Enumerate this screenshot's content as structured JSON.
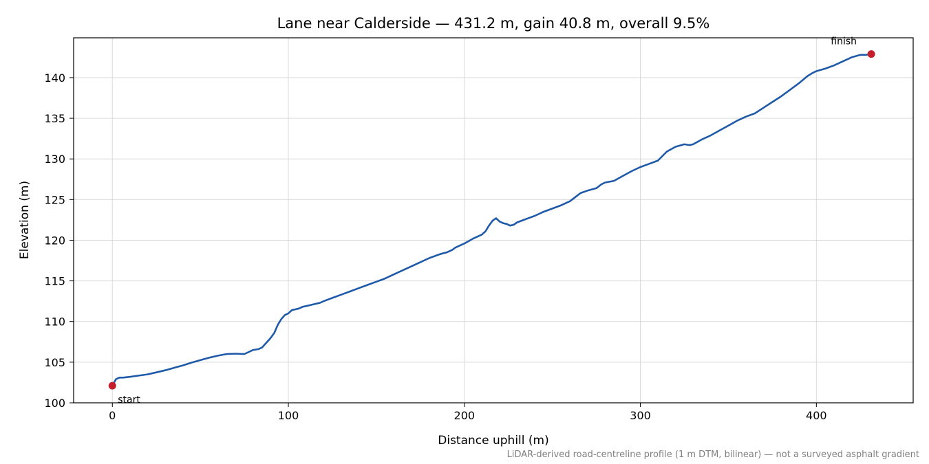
{
  "chart_data": {
    "type": "line",
    "title": "Lane near Calderside — 431.2 m, gain 40.8 m, overall 9.5%",
    "xlabel": "Distance uphill (m)",
    "ylabel": "Elevation (m)",
    "xlim": [
      -22,
      455
    ],
    "ylim": [
      100,
      144.9
    ],
    "xticks": [
      0,
      100,
      200,
      300,
      400
    ],
    "yticks": [
      100,
      105,
      110,
      115,
      120,
      125,
      130,
      135,
      140
    ],
    "grid": true,
    "footnote": "LiDAR-derived road-centreline profile (1 m DTM, bilinear) — not a surveyed asphalt gradient",
    "line_color": "#1f5aa8",
    "marker_color": "#c41e2a",
    "series": [
      {
        "x": [
          0,
          2,
          4,
          6,
          10,
          15,
          20,
          25,
          30,
          35,
          40,
          45,
          50,
          55,
          60,
          65,
          70,
          75,
          80,
          83,
          85,
          88,
          90,
          92,
          94,
          96,
          98,
          100,
          102,
          104,
          106,
          108,
          110,
          112,
          114,
          116,
          118,
          120,
          125,
          130,
          135,
          140,
          145,
          150,
          155,
          160,
          165,
          170,
          175,
          180,
          185,
          188,
          190,
          193,
          195,
          200,
          205,
          210,
          212,
          214,
          216,
          218,
          220,
          222,
          224,
          226,
          228,
          230,
          235,
          240,
          245,
          250,
          255,
          260,
          263,
          266,
          270,
          275,
          278,
          280,
          285,
          290,
          295,
          300,
          305,
          310,
          315,
          320,
          325,
          328,
          330,
          335,
          340,
          345,
          350,
          355,
          360,
          365,
          370,
          375,
          380,
          385,
          390,
          395,
          398,
          400,
          405,
          410,
          415,
          420,
          425,
          428,
          431.2
        ],
        "y": [
          102.1,
          102.9,
          103.1,
          103.1,
          103.2,
          103.35,
          103.5,
          103.75,
          104.0,
          104.3,
          104.6,
          104.95,
          105.25,
          105.55,
          105.8,
          106.0,
          106.05,
          106.0,
          106.5,
          106.6,
          106.8,
          107.5,
          108.0,
          108.6,
          109.6,
          110.3,
          110.8,
          111.0,
          111.4,
          111.5,
          111.6,
          111.8,
          111.9,
          112.0,
          112.1,
          112.2,
          112.3,
          112.5,
          112.9,
          113.3,
          113.7,
          114.1,
          114.5,
          114.9,
          115.3,
          115.8,
          116.3,
          116.8,
          117.3,
          117.8,
          118.2,
          118.4,
          118.5,
          118.8,
          119.1,
          119.6,
          120.2,
          120.7,
          121.1,
          121.8,
          122.4,
          122.7,
          122.3,
          122.1,
          122.0,
          121.8,
          121.9,
          122.2,
          122.6,
          123.0,
          123.5,
          123.9,
          124.3,
          124.8,
          125.3,
          125.8,
          126.1,
          126.4,
          126.9,
          127.1,
          127.3,
          127.9,
          128.5,
          129.0,
          129.4,
          129.8,
          130.9,
          131.5,
          131.8,
          131.7,
          131.8,
          132.4,
          132.9,
          133.5,
          134.1,
          134.7,
          135.2,
          135.6,
          136.3,
          137.0,
          137.7,
          138.5,
          139.3,
          140.2,
          140.6,
          140.8,
          141.1,
          141.5,
          142.0,
          142.5,
          142.8,
          142.8,
          142.9
        ]
      }
    ],
    "markers": [
      {
        "label": "start",
        "x": 0,
        "y": 102.1
      },
      {
        "label": "finish",
        "x": 431.2,
        "y": 142.9
      }
    ]
  }
}
